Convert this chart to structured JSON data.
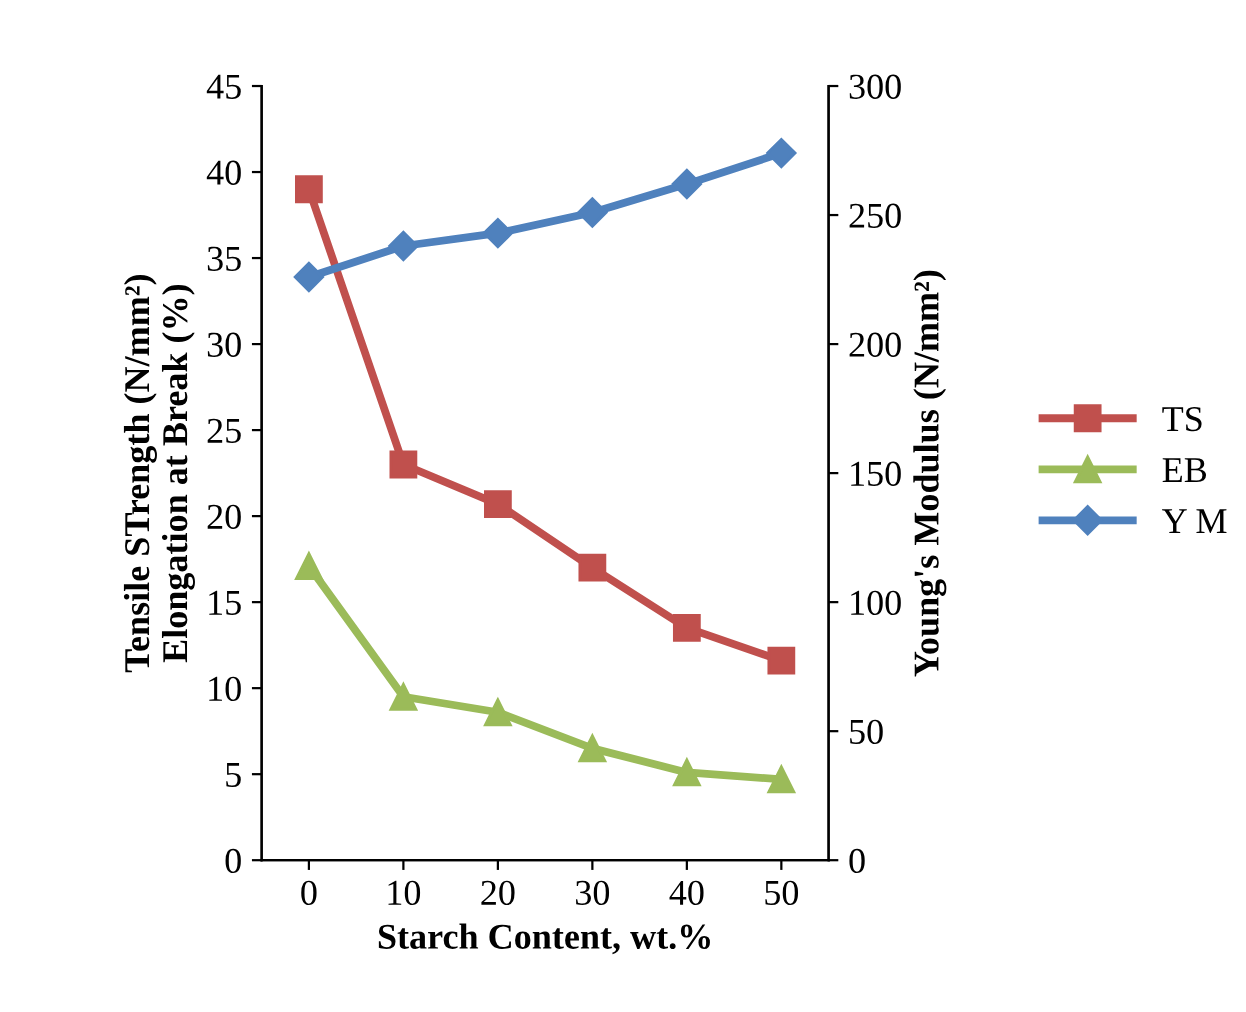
{
  "chart_data": {
    "type": "line",
    "xlabel": "Starch Content, wt.%",
    "ylabel": "Tensile STrength (N/mm²)\nElongation at Break (%)",
    "y2label": "Young's Modulus (N/mm²)",
    "categories": [
      "0",
      "10",
      "20",
      "30",
      "40",
      "50"
    ],
    "series": [
      {
        "name": "TS",
        "color": "#c0504d",
        "marker": "square",
        "values": [
          39,
          23,
          20.7,
          17,
          13.5,
          11.6
        ]
      },
      {
        "name": "EB",
        "color": "#9bbb59",
        "marker": "triangle",
        "values": [
          17.1,
          9.5,
          8.6,
          6.5,
          5.1,
          4.7
        ]
      },
      {
        "name": "Y M",
        "color": "#4f81bd",
        "marker": "diamond",
        "axis": "y2",
        "values": [
          226,
          238,
          243,
          251,
          262,
          274
        ]
      }
    ],
    "ylim": [
      0,
      45
    ],
    "yticks": [
      0,
      5,
      10,
      15,
      20,
      25,
      30,
      35,
      40,
      45
    ],
    "y2lim": [
      0,
      300
    ],
    "y2ticks": [
      0,
      50,
      100,
      150,
      200,
      250,
      300
    ],
    "legend": "right",
    "grid": false
  }
}
